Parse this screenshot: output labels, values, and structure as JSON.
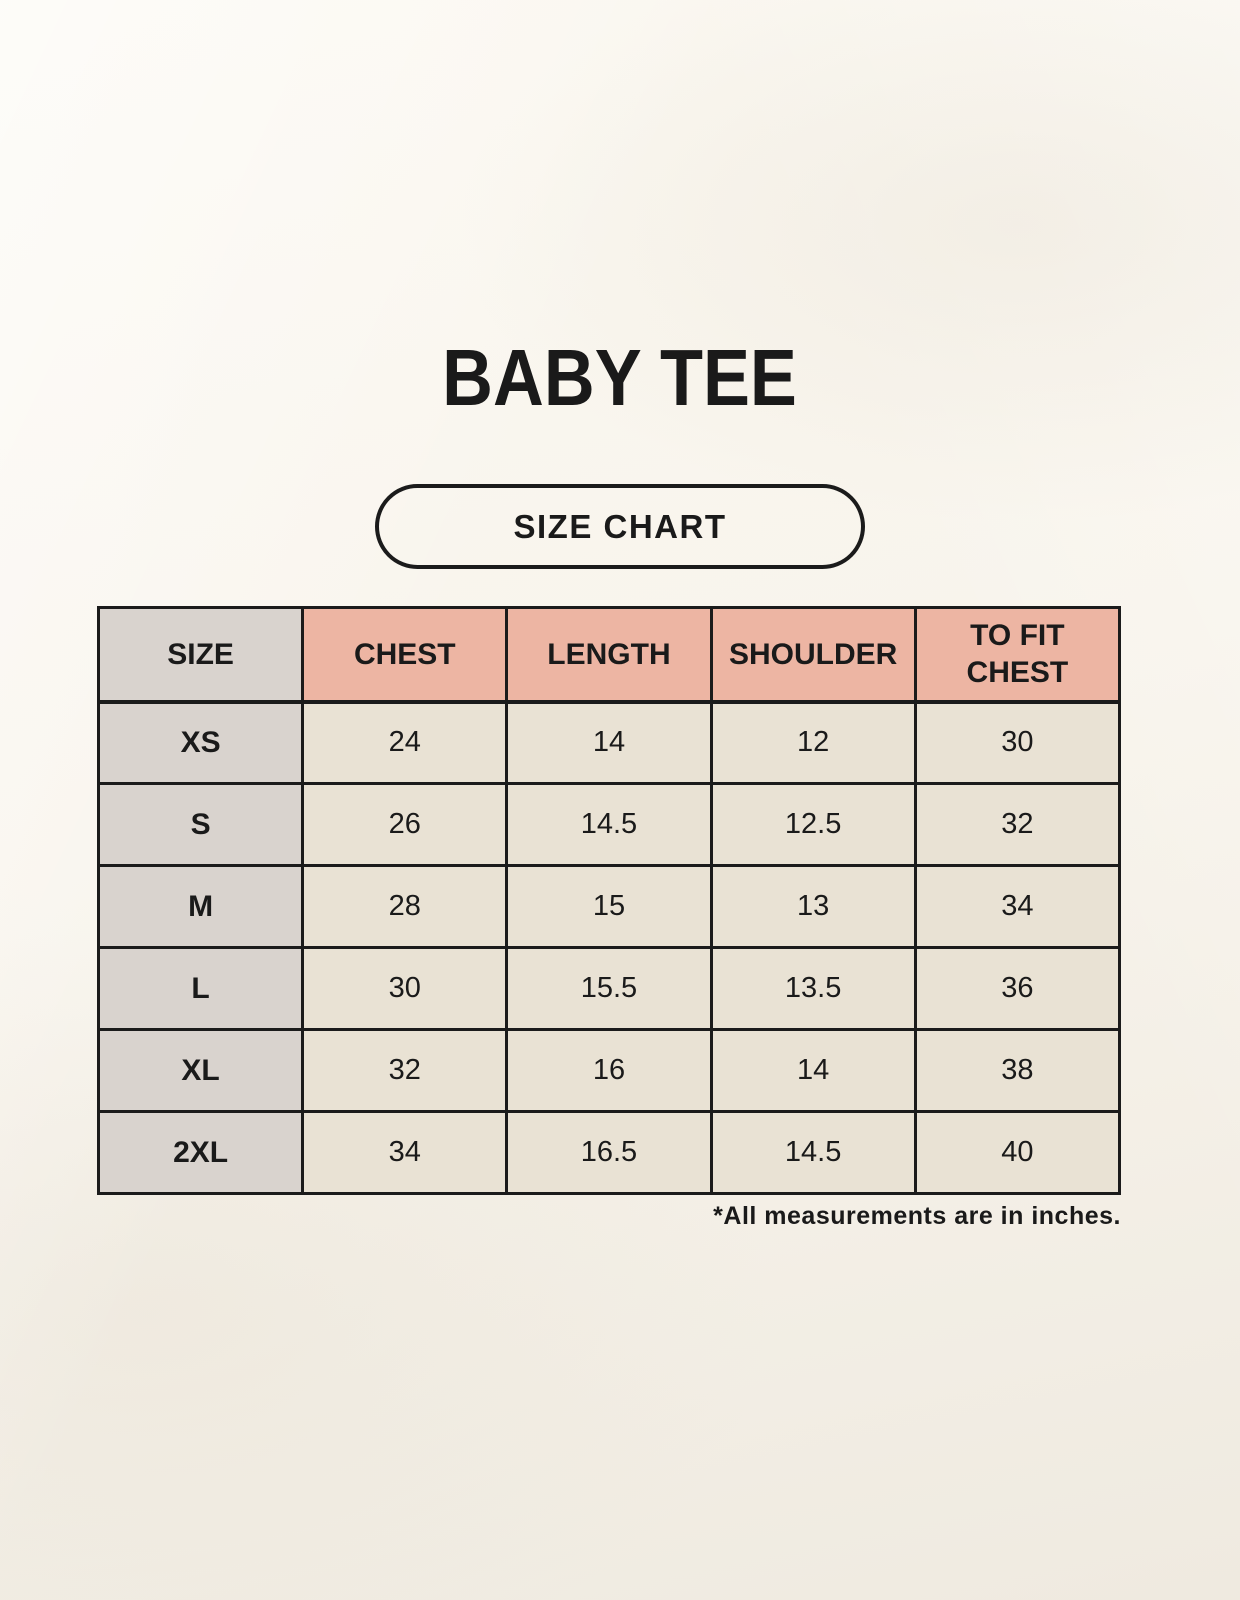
{
  "colors": {
    "bg_top": "#fbf8f1",
    "bg_bottom": "#efeae0",
    "header_pink": "#edb5a3",
    "size_gray": "#d9d3ce",
    "cell_cream": "#e9e2d4",
    "border_dark": "#1b1b1b",
    "text_dark": "#1a1a1a"
  },
  "page": {
    "title": "BABY TEE",
    "badge_label": "SIZE CHART",
    "footnote": "*All measurements are in inches."
  },
  "chart_data": {
    "type": "table",
    "title": "BABY TEE",
    "subtitle": "SIZE CHART",
    "units": "inches",
    "columns": [
      "SIZE",
      "CHEST",
      "LENGTH",
      "SHOULDER",
      "TO FIT CHEST"
    ],
    "rows": [
      [
        "XS",
        "24",
        "14",
        "12",
        "30"
      ],
      [
        "S",
        "26",
        "14.5",
        "12.5",
        "32"
      ],
      [
        "M",
        "28",
        "15",
        "13",
        "34"
      ],
      [
        "L",
        "30",
        "15.5",
        "13.5",
        "36"
      ],
      [
        "XL",
        "32",
        "16",
        "14",
        "38"
      ],
      [
        "2XL",
        "34",
        "16.5",
        "14.5",
        "40"
      ]
    ],
    "footnote": "*All measurements are in inches."
  }
}
